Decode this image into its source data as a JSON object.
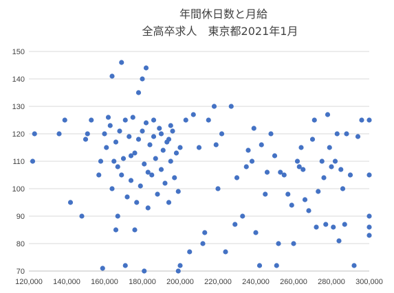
{
  "chart_data": {
    "type": "scatter",
    "title": "年間休日数と月給",
    "subtitle": "全高卒求人　東京都2021年1月",
    "xlabel": "",
    "ylabel": "",
    "xlim": [
      120000,
      300000
    ],
    "ylim": [
      70,
      150
    ],
    "x_ticks": [
      "120,000",
      "140,000",
      "160,000",
      "180,000",
      "200,000",
      "220,000",
      "240,000",
      "260,000",
      "280,000",
      "300,000"
    ],
    "y_ticks": [
      "70",
      "80",
      "90",
      "100",
      "110",
      "120",
      "130",
      "140",
      "150"
    ],
    "grid": "horizontal",
    "legend": "none",
    "marker_color": "#4472c4",
    "points": [
      [
        122000,
        110
      ],
      [
        123000,
        120
      ],
      [
        136000,
        120
      ],
      [
        139000,
        125
      ],
      [
        142000,
        95
      ],
      [
        148000,
        90
      ],
      [
        151000,
        120
      ],
      [
        153000,
        125
      ],
      [
        150000,
        118
      ],
      [
        157000,
        105
      ],
      [
        159000,
        71
      ],
      [
        158000,
        110
      ],
      [
        164000,
        141
      ],
      [
        166000,
        85
      ],
      [
        167000,
        90
      ],
      [
        169000,
        146
      ],
      [
        171000,
        72
      ],
      [
        174000,
        112
      ],
      [
        176000,
        85
      ],
      [
        178000,
        135
      ],
      [
        182000,
        144
      ],
      [
        180000,
        140
      ],
      [
        181000,
        70
      ],
      [
        183000,
        106
      ],
      [
        190000,
        120
      ],
      [
        186000,
        125
      ],
      [
        195000,
        123
      ],
      [
        194000,
        118
      ],
      [
        200000,
        115
      ],
      [
        199000,
        70
      ],
      [
        200000,
        72
      ],
      [
        203000,
        125
      ],
      [
        205000,
        77
      ],
      [
        207000,
        127
      ],
      [
        210000,
        115
      ],
      [
        212000,
        80
      ],
      [
        213000,
        84
      ],
      [
        215000,
        125
      ],
      [
        218000,
        130
      ],
      [
        219000,
        116
      ],
      [
        220000,
        100
      ],
      [
        222000,
        120
      ],
      [
        224000,
        77
      ],
      [
        227000,
        130
      ],
      [
        229000,
        87
      ],
      [
        230000,
        104
      ],
      [
        233000,
        90
      ],
      [
        235000,
        108
      ],
      [
        236000,
        114
      ],
      [
        238000,
        110
      ],
      [
        239000,
        122
      ],
      [
        240000,
        84
      ],
      [
        242000,
        72
      ],
      [
        243000,
        116
      ],
      [
        245000,
        98
      ],
      [
        246000,
        106
      ],
      [
        248000,
        120
      ],
      [
        250000,
        112
      ],
      [
        251000,
        72
      ],
      [
        252000,
        80
      ],
      [
        253000,
        106
      ],
      [
        255000,
        105
      ],
      [
        257000,
        98
      ],
      [
        259000,
        94
      ],
      [
        260000,
        80
      ],
      [
        262000,
        110
      ],
      [
        263000,
        108
      ],
      [
        264000,
        115
      ],
      [
        265000,
        107
      ],
      [
        266000,
        96
      ],
      [
        268000,
        92
      ],
      [
        270000,
        118
      ],
      [
        271000,
        125
      ],
      [
        272000,
        86
      ],
      [
        273000,
        99
      ],
      [
        275000,
        110
      ],
      [
        276000,
        104
      ],
      [
        277000,
        87
      ],
      [
        278000,
        127
      ],
      [
        279000,
        115
      ],
      [
        280000,
        108
      ],
      [
        281000,
        86
      ],
      [
        282000,
        110
      ],
      [
        283000,
        120
      ],
      [
        284000,
        81
      ],
      [
        285000,
        107
      ],
      [
        286000,
        100
      ],
      [
        287000,
        87
      ],
      [
        288000,
        120
      ],
      [
        290000,
        105
      ],
      [
        292000,
        72
      ],
      [
        294000,
        119
      ],
      [
        296000,
        125
      ],
      [
        300000,
        105
      ],
      [
        300000,
        90
      ],
      [
        300000,
        86
      ],
      [
        300000,
        83
      ],
      [
        300000,
        125
      ],
      [
        160000,
        120
      ],
      [
        161000,
        115
      ],
      [
        162000,
        126
      ],
      [
        163000,
        123
      ],
      [
        164000,
        100
      ],
      [
        165000,
        110
      ],
      [
        166000,
        117
      ],
      [
        167000,
        108
      ],
      [
        168000,
        121
      ],
      [
        169000,
        105
      ],
      [
        170000,
        111
      ],
      [
        171000,
        125
      ],
      [
        172000,
        97
      ],
      [
        173000,
        119
      ],
      [
        174000,
        103
      ],
      [
        175000,
        126
      ],
      [
        176000,
        113
      ],
      [
        177000,
        95
      ],
      [
        178000,
        118
      ],
      [
        179000,
        101
      ],
      [
        180000,
        121
      ],
      [
        181000,
        109
      ],
      [
        182000,
        124
      ],
      [
        183000,
        93
      ],
      [
        184000,
        116
      ],
      [
        185000,
        105
      ],
      [
        186000,
        119
      ],
      [
        187000,
        111
      ],
      [
        188000,
        98
      ],
      [
        189000,
        122
      ],
      [
        190000,
        107
      ],
      [
        191000,
        114
      ],
      [
        192000,
        102
      ],
      [
        193000,
        117
      ],
      [
        194000,
        95
      ],
      [
        195000,
        110
      ],
      [
        196000,
        121
      ],
      [
        197000,
        104
      ],
      [
        198000,
        113
      ],
      [
        199000,
        99
      ]
    ]
  }
}
